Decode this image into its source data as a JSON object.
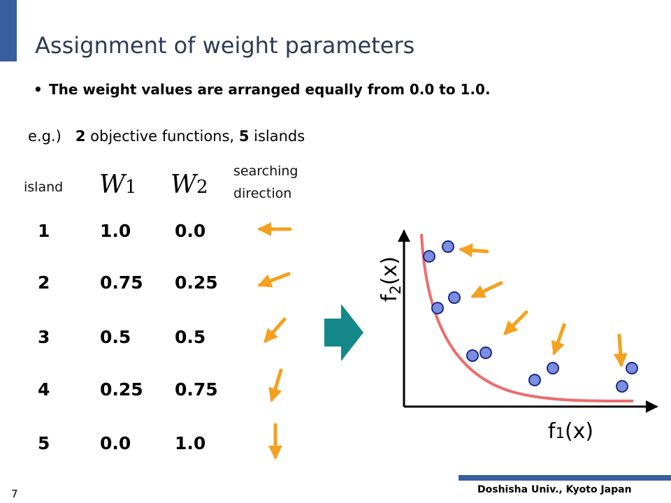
{
  "title": "Assignment of weight parameters",
  "bullet": "The weight values are arranged equally from 0.0 to 1.0.",
  "example": {
    "prefix": "e.g.)",
    "num_objectives": "2",
    "objectives_text": "objective functions,",
    "num_islands": "5",
    "islands_text": "islands"
  },
  "table": {
    "headers": {
      "island": "island",
      "w1_letter": "W",
      "w1_sub": "1",
      "w2_letter": "W",
      "w2_sub": "2",
      "direction_line1": "searching",
      "direction_line2": "direction"
    },
    "rows": [
      {
        "island": "1",
        "w1": "1.0",
        "w2": "0.0"
      },
      {
        "island": "2",
        "w1": "0.75",
        "w2": "0.25"
      },
      {
        "island": "3",
        "w1": "0.5",
        "w2": "0.5"
      },
      {
        "island": "4",
        "w1": "0.25",
        "w2": "0.75"
      },
      {
        "island": "5",
        "w1": "0.0",
        "w2": "1.0"
      }
    ]
  },
  "plot": {
    "y_label_main": "f",
    "y_label_sub": "2",
    "y_label_rest": "(x)",
    "x_label_main": "f",
    "x_label_sub": "1",
    "x_label_rest": "(x)"
  },
  "colors": {
    "accent_bar": "#3a5fa0",
    "footer_bar": "#3a5fa0",
    "arrow": "#f5a01e",
    "big_arrow": "#14888a",
    "curve": "#ee6b6b",
    "dot_fill": "#7c8ee0",
    "dot_stroke": "#1a2a8a"
  },
  "footer": "Doshisha Univ., Kyoto Japan",
  "page_number": "7"
}
